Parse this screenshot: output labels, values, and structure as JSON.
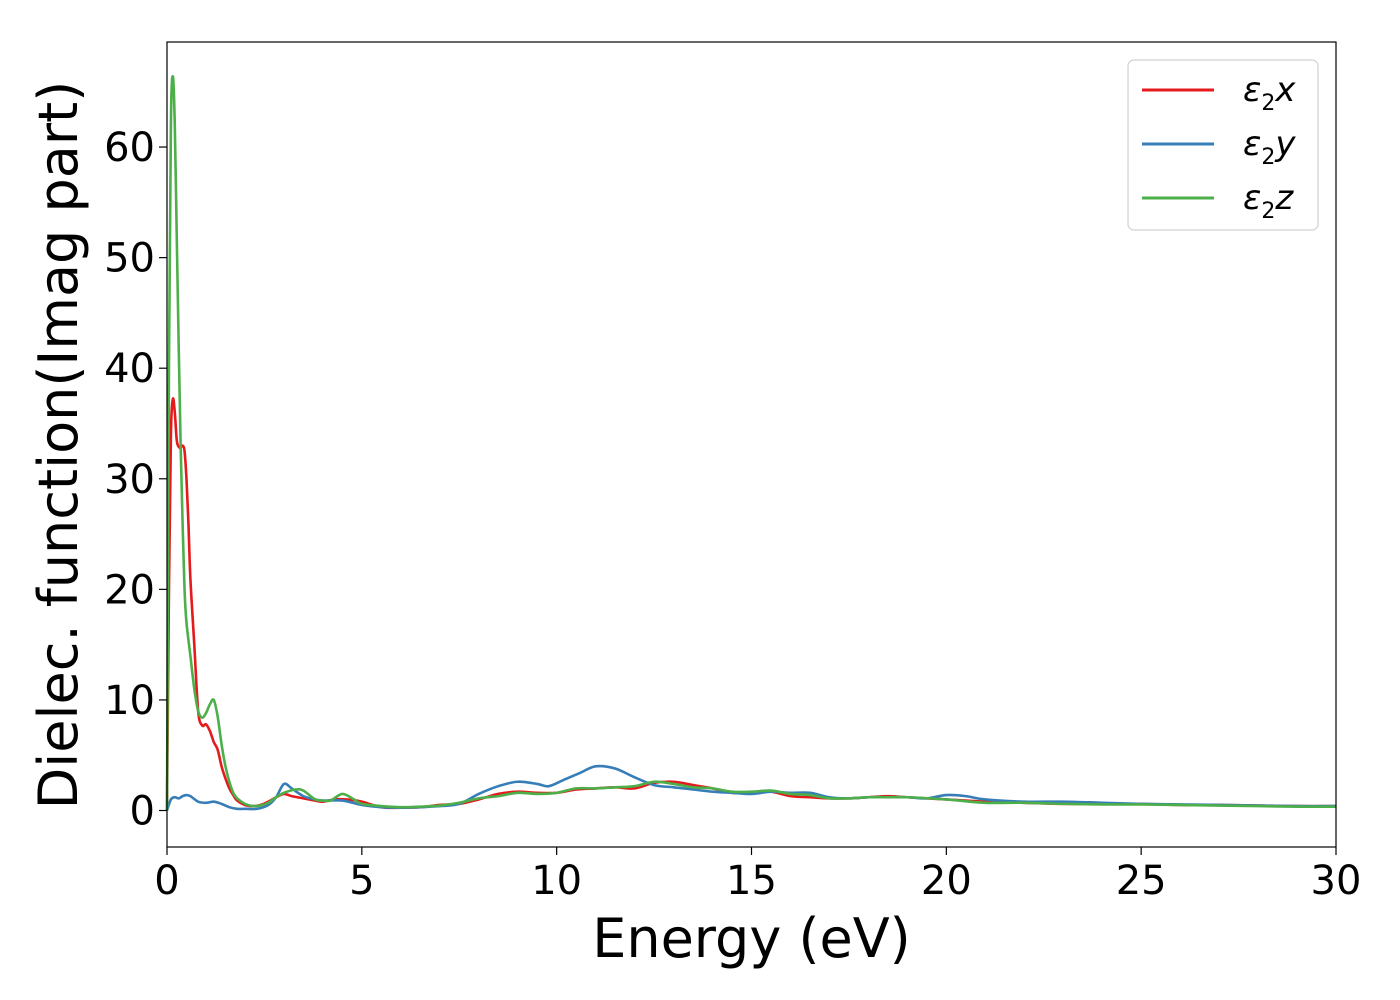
{
  "chart_data": {
    "type": "line",
    "xlabel": "Energy (eV)",
    "ylabel": "Dielec. function(Imag part)",
    "xlim": [
      0,
      30
    ],
    "ylim": [
      -3.3,
      69.5
    ],
    "xticks": [
      0,
      5,
      10,
      15,
      20,
      25,
      30
    ],
    "yticks": [
      0,
      10,
      20,
      30,
      40,
      50,
      60
    ],
    "grid": false,
    "legend_position": "top-right",
    "series": [
      {
        "name": "ε₂x",
        "legend_base": "ε",
        "legend_sub": "2",
        "legend_var": "x",
        "color": "#e41a1c",
        "x": [
          0,
          0.05,
          0.1,
          0.15,
          0.2,
          0.25,
          0.3,
          0.35,
          0.4,
          0.45,
          0.5,
          0.55,
          0.6,
          0.7,
          0.8,
          0.9,
          1.0,
          1.1,
          1.2,
          1.3,
          1.4,
          1.5,
          1.6,
          1.7,
          1.8,
          2.0,
          2.2,
          2.4,
          2.6,
          2.8,
          3.0,
          3.2,
          3.5,
          3.8,
          4.0,
          4.3,
          4.6,
          5.0,
          5.5,
          6.0,
          6.5,
          7.0,
          7.5,
          8.0,
          8.5,
          9.0,
          9.5,
          10.0,
          10.5,
          11.0,
          11.5,
          12.0,
          12.5,
          13.0,
          13.5,
          14.0,
          14.5,
          15.0,
          15.5,
          16.0,
          16.5,
          17.0,
          17.5,
          18.0,
          18.5,
          19.0,
          20.0,
          21.0,
          22.0,
          23.0,
          24.0,
          25.0,
          26.0,
          27.0,
          28.0,
          29.0,
          30.0
        ],
        "y": [
          0,
          20,
          34,
          37.2,
          36,
          33.5,
          32.9,
          32.8,
          33,
          32.5,
          30,
          26,
          21,
          15,
          9,
          7.7,
          7.8,
          7.2,
          6.2,
          5.5,
          4,
          2.9,
          2.0,
          1.4,
          0.9,
          0.5,
          0.4,
          0.5,
          0.8,
          1.2,
          1.5,
          1.3,
          1.1,
          0.9,
          0.8,
          1.0,
          1.0,
          0.8,
          0.3,
          0.25,
          0.3,
          0.5,
          0.6,
          1.0,
          1.5,
          1.7,
          1.6,
          1.6,
          1.9,
          2.0,
          2.1,
          2.0,
          2.5,
          2.6,
          2.3,
          2.0,
          1.6,
          1.6,
          1.7,
          1.3,
          1.2,
          1.1,
          1.1,
          1.2,
          1.3,
          1.2,
          1.0,
          0.8,
          0.7,
          0.6,
          0.6,
          0.6,
          0.5,
          0.5,
          0.45,
          0.4,
          0.4
        ]
      },
      {
        "name": "ε₂y",
        "legend_base": "ε",
        "legend_sub": "2",
        "legend_var": "y",
        "color": "#377eb8",
        "x": [
          0,
          0.1,
          0.2,
          0.3,
          0.4,
          0.5,
          0.6,
          0.8,
          1.0,
          1.2,
          1.4,
          1.6,
          1.8,
          2.0,
          2.3,
          2.6,
          2.8,
          3.0,
          3.2,
          3.5,
          3.8,
          4.0,
          4.5,
          5.0,
          5.5,
          6.0,
          6.5,
          7.0,
          7.5,
          8.0,
          8.5,
          9.0,
          9.5,
          9.8,
          10.2,
          10.6,
          11.0,
          11.5,
          12.0,
          12.5,
          13.0,
          13.5,
          14.0,
          14.5,
          15.0,
          15.5,
          16.0,
          16.5,
          17.0,
          17.5,
          18.0,
          18.5,
          19.0,
          19.5,
          20.0,
          20.5,
          21.0,
          22.0,
          23.0,
          24.0,
          25.0,
          26.0,
          27.0,
          28.0,
          29.0,
          30.0
        ],
        "y": [
          0,
          1.0,
          1.2,
          1.1,
          1.3,
          1.4,
          1.3,
          0.8,
          0.7,
          0.8,
          0.6,
          0.3,
          0.15,
          0.15,
          0.15,
          0.5,
          1.2,
          2.4,
          2.0,
          1.3,
          1.0,
          0.9,
          0.9,
          0.5,
          0.3,
          0.25,
          0.3,
          0.4,
          0.6,
          1.5,
          2.2,
          2.6,
          2.4,
          2.2,
          2.8,
          3.4,
          4.0,
          3.8,
          3.0,
          2.3,
          2.1,
          1.9,
          1.7,
          1.6,
          1.5,
          1.7,
          1.6,
          1.6,
          1.2,
          1.1,
          1.2,
          1.2,
          1.2,
          1.1,
          1.4,
          1.3,
          1.0,
          0.8,
          0.8,
          0.7,
          0.6,
          0.55,
          0.5,
          0.45,
          0.4,
          0.4
        ]
      },
      {
        "name": "ε₂z",
        "legend_base": "ε",
        "legend_sub": "2",
        "legend_var": "z",
        "color": "#4daf4a",
        "x": [
          0,
          0.05,
          0.1,
          0.15,
          0.2,
          0.25,
          0.3,
          0.35,
          0.4,
          0.45,
          0.5,
          0.6,
          0.7,
          0.8,
          0.9,
          1.0,
          1.1,
          1.2,
          1.3,
          1.4,
          1.5,
          1.6,
          1.7,
          1.8,
          2.0,
          2.2,
          2.4,
          2.6,
          2.8,
          3.0,
          3.3,
          3.5,
          3.8,
          4.0,
          4.2,
          4.5,
          4.8,
          5.0,
          5.5,
          6.0,
          6.5,
          7.0,
          7.5,
          8.0,
          8.5,
          9.0,
          9.5,
          10.0,
          10.5,
          11.0,
          11.5,
          12.0,
          12.5,
          13.0,
          13.5,
          14.0,
          14.5,
          15.0,
          15.5,
          16.0,
          16.5,
          17.0,
          17.5,
          18.0,
          18.5,
          19.0,
          20.0,
          21.0,
          22.0,
          23.0,
          24.0,
          25.0,
          26.0,
          27.0,
          28.0,
          29.0,
          30.0
        ],
        "y": [
          0,
          40,
          62,
          66.4,
          62,
          52,
          42,
          33,
          26,
          20,
          17,
          14,
          11,
          9,
          8.4,
          8.8,
          9.6,
          10.0,
          8.5,
          6,
          4,
          2.6,
          1.6,
          1.1,
          0.6,
          0.4,
          0.45,
          0.7,
          1.2,
          1.6,
          1.9,
          1.8,
          1.0,
          0.9,
          0.9,
          1.5,
          1.0,
          0.6,
          0.4,
          0.3,
          0.35,
          0.45,
          0.7,
          1.1,
          1.3,
          1.6,
          1.5,
          1.6,
          2.0,
          2.0,
          2.1,
          2.2,
          2.6,
          2.4,
          2.1,
          2.0,
          1.7,
          1.7,
          1.8,
          1.5,
          1.4,
          1.1,
          1.1,
          1.2,
          1.2,
          1.2,
          1.0,
          0.7,
          0.7,
          0.6,
          0.55,
          0.55,
          0.5,
          0.45,
          0.4,
          0.35,
          0.35
        ]
      }
    ]
  }
}
